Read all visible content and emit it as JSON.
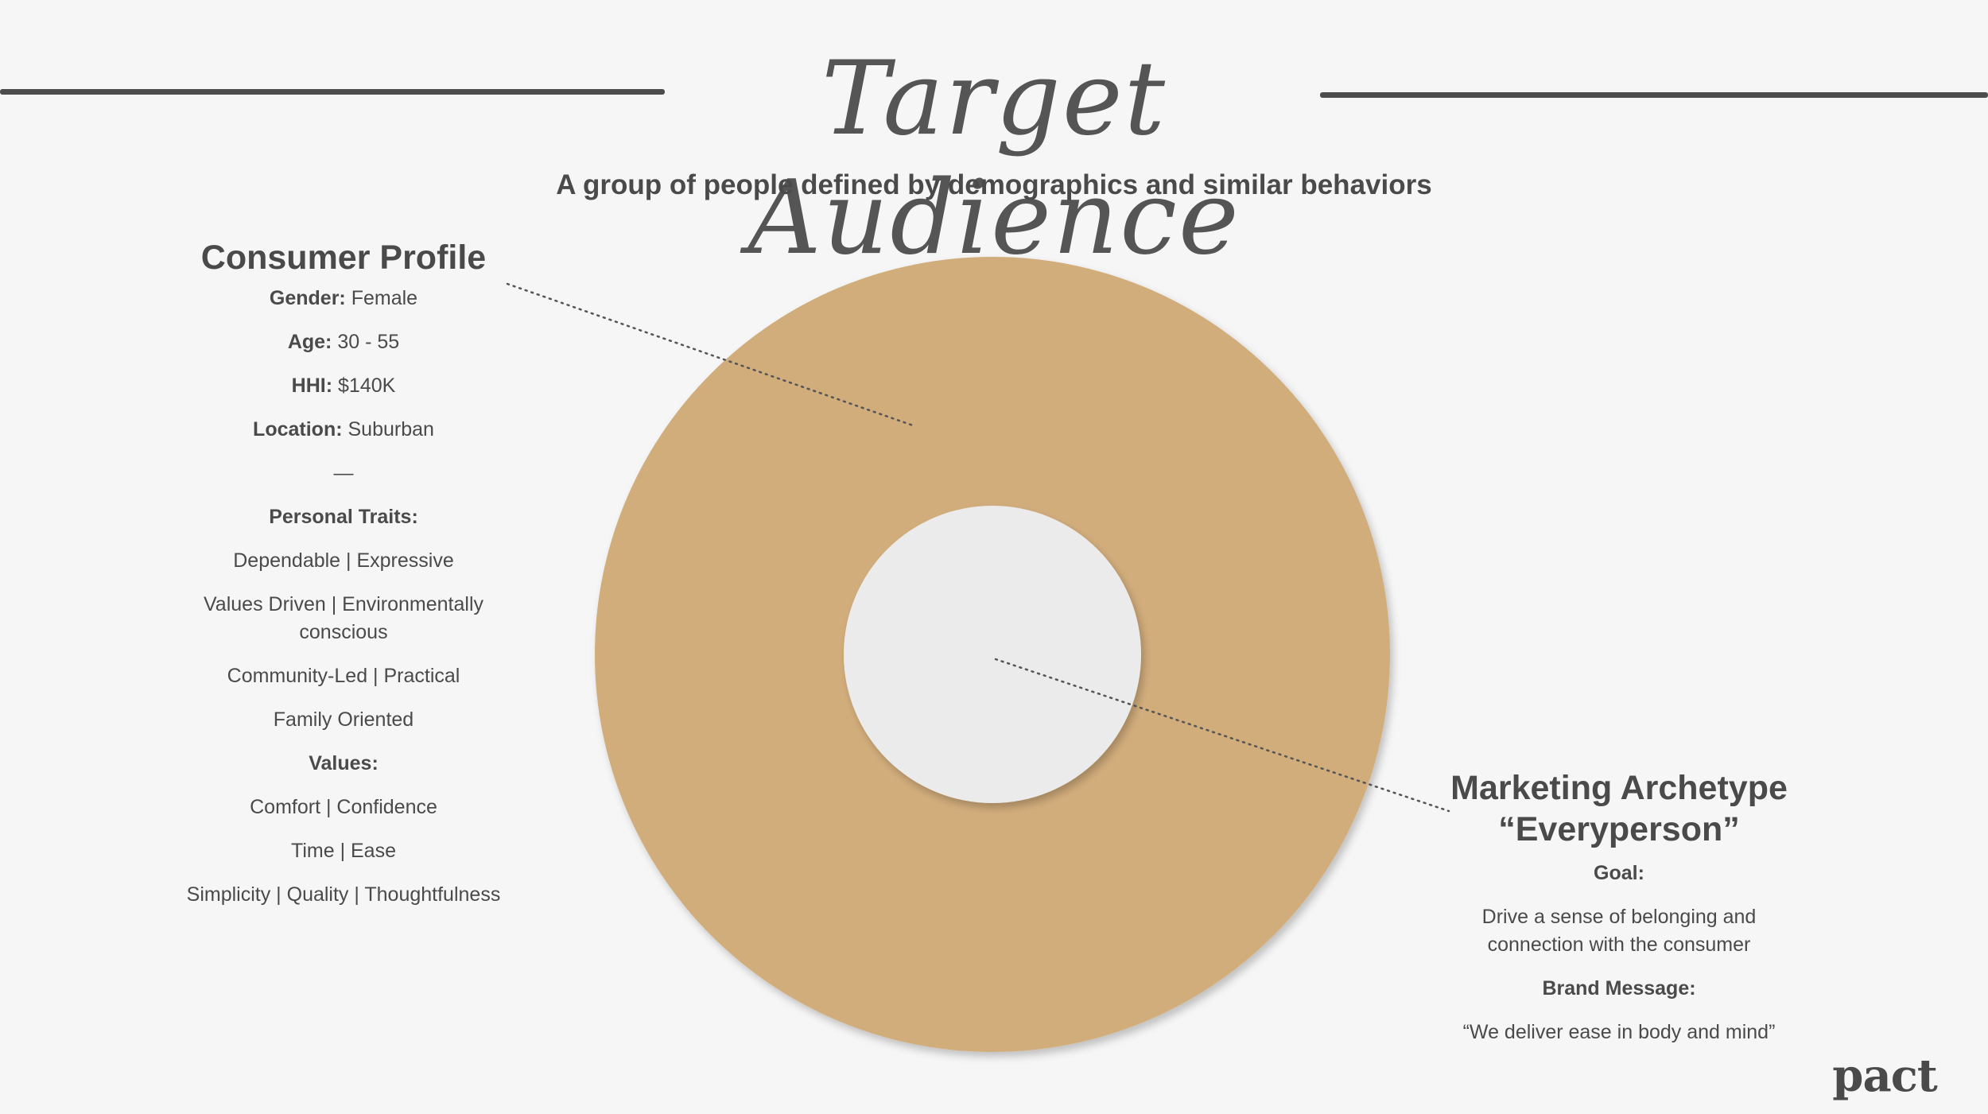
{
  "header": {
    "title": "Target Audience",
    "subtitle": "A group of people defined by demographics and similar behaviors"
  },
  "colors": {
    "outer_ring": "#d2ad7b",
    "inner_circle": "#ebebeb",
    "text": "#4a4a4a",
    "rule": "#4d4d4d"
  },
  "consumer_profile": {
    "heading": "Consumer Profile",
    "demographics": [
      {
        "label": "Gender:",
        "value": "Female"
      },
      {
        "label": "Age:",
        "value": "30 - 55"
      },
      {
        "label": "HHI:",
        "value": "$140K"
      },
      {
        "label": "Location:",
        "value": "Suburban"
      }
    ],
    "divider": "—",
    "traits_label": "Personal Traits:",
    "traits": [
      "Dependable | Expressive",
      "Values Driven | Environmentally conscious",
      "Community-Led | Practical",
      "Family Oriented"
    ],
    "values_label": "Values:",
    "values": [
      "Comfort | Confidence",
      "Time | Ease",
      "Simplicity | Quality | Thoughtfulness"
    ]
  },
  "marketing_archetype": {
    "heading_line1": "Marketing Archetype",
    "heading_line2": "“Everyperson”",
    "goal_label": "Goal:",
    "goal_text": "Drive a sense of belonging and connection with the consumer",
    "brand_message_label": "Brand Message:",
    "brand_message_text": "“We deliver ease in body and mind”"
  },
  "logo": {
    "text": "pact"
  }
}
